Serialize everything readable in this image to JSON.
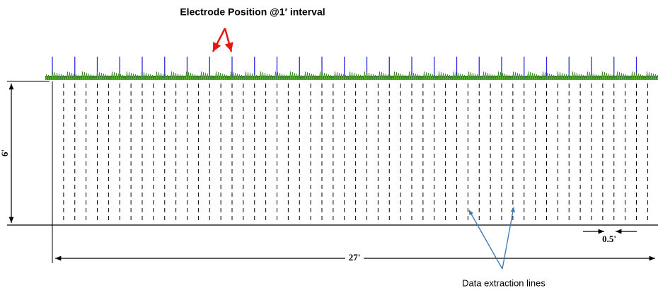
{
  "title": "Electrode Position @1′ interval",
  "dimensions": {
    "height": "6'",
    "length": "27'",
    "spacing": "0.5'"
  },
  "annotation": "Data extraction lines"
}
